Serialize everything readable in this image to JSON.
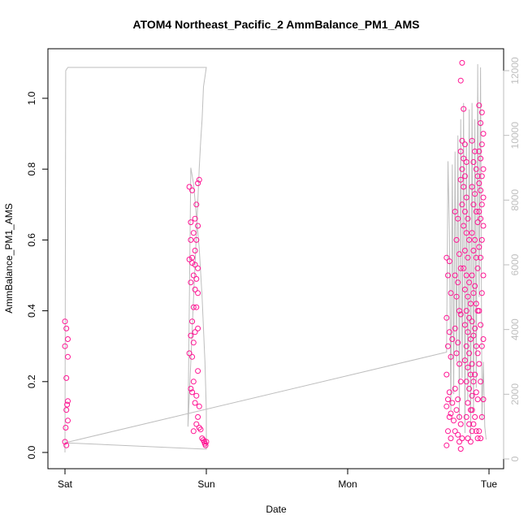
{
  "chart_data": {
    "type": "scatter",
    "title": "ATOM4 Northeast_Pacific_2 AmmBalance_PM1_AMS",
    "xlabel": "Date",
    "ylabel": "AmmBalance_PM1_AMS",
    "x_categories": [
      "Sat",
      "Sun",
      "Mon",
      "Tue"
    ],
    "x_range": [
      0,
      3
    ],
    "ylim": [
      0,
      1.1
    ],
    "y_ticks": [
      0.0,
      0.2,
      0.4,
      0.6,
      0.8,
      1.0
    ],
    "y_tick_labels": [
      "0.0",
      "0.2",
      "0.4",
      "0.6",
      "0.8",
      "1.0"
    ],
    "y2lim": [
      0,
      12500
    ],
    "y2_ticks": [
      0,
      2000,
      4000,
      6000,
      8000,
      10000,
      12000
    ],
    "y2_tick_labels": [
      "0",
      "2000",
      "4000",
      "6000",
      "8000",
      "10000",
      "12000"
    ],
    "grid": false,
    "colors": {
      "points": "#ff1493",
      "line": "#bebebe",
      "axis": "#000000"
    },
    "series": [
      {
        "kind": "points",
        "points": [
          [
            0.0,
            0.37
          ],
          [
            0.01,
            0.35
          ],
          [
            0.02,
            0.32
          ],
          [
            0.0,
            0.3
          ],
          [
            0.02,
            0.27
          ],
          [
            0.01,
            0.21
          ],
          [
            0.02,
            0.145
          ],
          [
            0.015,
            0.135
          ],
          [
            0.01,
            0.12
          ],
          [
            0.02,
            0.09
          ],
          [
            0.005,
            0.07
          ],
          [
            0.0,
            0.03
          ],
          [
            0.01,
            0.02
          ],
          [
            0.88,
            0.75
          ],
          [
            0.9,
            0.74
          ],
          [
            0.95,
            0.77
          ],
          [
            0.94,
            0.76
          ],
          [
            0.93,
            0.7
          ],
          [
            0.89,
            0.65
          ],
          [
            0.92,
            0.66
          ],
          [
            0.91,
            0.62
          ],
          [
            0.94,
            0.64
          ],
          [
            0.93,
            0.6
          ],
          [
            0.89,
            0.6
          ],
          [
            0.92,
            0.57
          ],
          [
            0.9,
            0.55
          ],
          [
            0.88,
            0.545
          ],
          [
            0.9,
            0.535
          ],
          [
            0.92,
            0.53
          ],
          [
            0.94,
            0.52
          ],
          [
            0.91,
            0.5
          ],
          [
            0.93,
            0.49
          ],
          [
            0.89,
            0.48
          ],
          [
            0.92,
            0.46
          ],
          [
            0.94,
            0.45
          ],
          [
            0.91,
            0.41
          ],
          [
            0.93,
            0.41
          ],
          [
            0.9,
            0.37
          ],
          [
            0.92,
            0.34
          ],
          [
            0.94,
            0.35
          ],
          [
            0.89,
            0.33
          ],
          [
            0.91,
            0.31
          ],
          [
            0.88,
            0.28
          ],
          [
            0.9,
            0.27
          ],
          [
            0.94,
            0.23
          ],
          [
            0.91,
            0.2
          ],
          [
            0.89,
            0.18
          ],
          [
            0.9,
            0.17
          ],
          [
            0.93,
            0.16
          ],
          [
            0.92,
            0.14
          ],
          [
            0.95,
            0.13
          ],
          [
            0.94,
            0.1
          ],
          [
            0.93,
            0.08
          ],
          [
            0.95,
            0.07
          ],
          [
            0.96,
            0.065
          ],
          [
            0.91,
            0.06
          ],
          [
            0.97,
            0.04
          ],
          [
            0.98,
            0.035
          ],
          [
            0.985,
            0.03
          ],
          [
            0.99,
            0.025
          ],
          [
            0.995,
            0.02
          ],
          [
            1.0,
            0.03
          ],
          [
            2.7,
            0.55
          ],
          [
            2.72,
            0.54
          ],
          [
            2.71,
            0.5
          ],
          [
            2.73,
            0.45
          ],
          [
            2.7,
            0.38
          ],
          [
            2.72,
            0.34
          ],
          [
            2.74,
            0.32
          ],
          [
            2.71,
            0.3
          ],
          [
            2.73,
            0.27
          ],
          [
            2.7,
            0.22
          ],
          [
            2.72,
            0.17
          ],
          [
            2.71,
            0.15
          ],
          [
            2.74,
            0.14
          ],
          [
            2.7,
            0.13
          ],
          [
            2.73,
            0.11
          ],
          [
            2.72,
            0.1
          ],
          [
            2.75,
            0.09
          ],
          [
            2.71,
            0.06
          ],
          [
            2.73,
            0.04
          ],
          [
            2.7,
            0.02
          ],
          [
            2.76,
            0.68
          ],
          [
            2.78,
            0.66
          ],
          [
            2.77,
            0.6
          ],
          [
            2.79,
            0.56
          ],
          [
            2.8,
            0.52
          ],
          [
            2.76,
            0.5
          ],
          [
            2.78,
            0.48
          ],
          [
            2.77,
            0.44
          ],
          [
            2.79,
            0.4
          ],
          [
            2.8,
            0.39
          ],
          [
            2.76,
            0.35
          ],
          [
            2.78,
            0.31
          ],
          [
            2.77,
            0.28
          ],
          [
            2.79,
            0.25
          ],
          [
            2.8,
            0.2
          ],
          [
            2.76,
            0.18
          ],
          [
            2.78,
            0.15
          ],
          [
            2.77,
            0.12
          ],
          [
            2.79,
            0.1
          ],
          [
            2.8,
            0.08
          ],
          [
            2.76,
            0.06
          ],
          [
            2.78,
            0.05
          ],
          [
            2.81,
            0.04
          ],
          [
            2.79,
            0.03
          ],
          [
            2.8,
            0.01
          ],
          [
            2.81,
            1.1
          ],
          [
            2.8,
            1.05
          ],
          [
            2.82,
            0.97
          ],
          [
            2.81,
            0.88
          ],
          [
            2.83,
            0.87
          ],
          [
            2.8,
            0.85
          ],
          [
            2.82,
            0.83
          ],
          [
            2.84,
            0.82
          ],
          [
            2.81,
            0.8
          ],
          [
            2.83,
            0.78
          ],
          [
            2.8,
            0.77
          ],
          [
            2.82,
            0.75
          ],
          [
            2.84,
            0.72
          ],
          [
            2.81,
            0.7
          ],
          [
            2.83,
            0.68
          ],
          [
            2.85,
            0.66
          ],
          [
            2.82,
            0.64
          ],
          [
            2.84,
            0.62
          ],
          [
            2.86,
            0.6
          ],
          [
            2.83,
            0.57
          ],
          [
            2.85,
            0.55
          ],
          [
            2.82,
            0.52
          ],
          [
            2.84,
            0.5
          ],
          [
            2.86,
            0.48
          ],
          [
            2.83,
            0.46
          ],
          [
            2.85,
            0.44
          ],
          [
            2.87,
            0.42
          ],
          [
            2.84,
            0.4
          ],
          [
            2.86,
            0.38
          ],
          [
            2.83,
            0.36
          ],
          [
            2.85,
            0.34
          ],
          [
            2.87,
            0.32
          ],
          [
            2.84,
            0.3
          ],
          [
            2.86,
            0.28
          ],
          [
            2.83,
            0.26
          ],
          [
            2.85,
            0.24
          ],
          [
            2.87,
            0.22
          ],
          [
            2.84,
            0.2
          ],
          [
            2.86,
            0.18
          ],
          [
            2.88,
            0.16
          ],
          [
            2.85,
            0.14
          ],
          [
            2.87,
            0.12
          ],
          [
            2.84,
            0.1
          ],
          [
            2.86,
            0.08
          ],
          [
            2.88,
            0.06
          ],
          [
            2.85,
            0.04
          ],
          [
            2.87,
            0.03
          ],
          [
            2.88,
            0.88
          ],
          [
            2.9,
            0.85
          ],
          [
            2.89,
            0.82
          ],
          [
            2.91,
            0.8
          ],
          [
            2.92,
            0.78
          ],
          [
            2.88,
            0.75
          ],
          [
            2.9,
            0.73
          ],
          [
            2.89,
            0.7
          ],
          [
            2.91,
            0.68
          ],
          [
            2.92,
            0.65
          ],
          [
            2.88,
            0.62
          ],
          [
            2.9,
            0.6
          ],
          [
            2.89,
            0.57
          ],
          [
            2.91,
            0.55
          ],
          [
            2.92,
            0.52
          ],
          [
            2.88,
            0.5
          ],
          [
            2.9,
            0.47
          ],
          [
            2.89,
            0.45
          ],
          [
            2.91,
            0.42
          ],
          [
            2.92,
            0.4
          ],
          [
            2.88,
            0.37
          ],
          [
            2.9,
            0.35
          ],
          [
            2.89,
            0.33
          ],
          [
            2.91,
            0.3
          ],
          [
            2.92,
            0.28
          ],
          [
            2.88,
            0.25
          ],
          [
            2.9,
            0.22
          ],
          [
            2.89,
            0.2
          ],
          [
            2.91,
            0.17
          ],
          [
            2.92,
            0.15
          ],
          [
            2.88,
            0.12
          ],
          [
            2.9,
            0.1
          ],
          [
            2.89,
            0.08
          ],
          [
            2.91,
            0.06
          ],
          [
            2.92,
            0.04
          ],
          [
            2.93,
            0.98
          ],
          [
            2.95,
            0.96
          ],
          [
            2.94,
            0.93
          ],
          [
            2.96,
            0.9
          ],
          [
            2.95,
            0.87
          ],
          [
            2.93,
            0.85
          ],
          [
            2.94,
            0.83
          ],
          [
            2.96,
            0.8
          ],
          [
            2.95,
            0.78
          ],
          [
            2.93,
            0.76
          ],
          [
            2.94,
            0.74
          ],
          [
            2.96,
            0.72
          ],
          [
            2.95,
            0.7
          ],
          [
            2.93,
            0.68
          ],
          [
            2.94,
            0.66
          ],
          [
            2.96,
            0.64
          ],
          [
            2.95,
            0.6
          ],
          [
            2.93,
            0.58
          ],
          [
            2.94,
            0.55
          ],
          [
            2.96,
            0.5
          ],
          [
            2.95,
            0.45
          ],
          [
            2.93,
            0.4
          ],
          [
            2.94,
            0.36
          ],
          [
            2.96,
            0.32
          ],
          [
            2.95,
            0.3
          ],
          [
            2.93,
            0.25
          ],
          [
            2.94,
            0.2
          ],
          [
            2.96,
            0.15
          ],
          [
            2.95,
            0.1
          ],
          [
            2.93,
            0.06
          ],
          [
            2.94,
            0.04
          ]
        ]
      },
      {
        "kind": "line",
        "axis": "right",
        "points": [
          [
            0.0,
            200
          ],
          [
            0.005,
            12000
          ],
          [
            0.02,
            12100
          ],
          [
            0.5,
            12100
          ],
          [
            1.0,
            12100
          ],
          [
            0.98,
            11500
          ],
          [
            0.97,
            10500
          ],
          [
            0.96,
            9800
          ],
          [
            0.95,
            9000
          ],
          [
            0.94,
            8000
          ],
          [
            0.93,
            7000
          ],
          [
            0.92,
            6000
          ],
          [
            0.91,
            5000
          ],
          [
            0.9,
            4000
          ],
          [
            0.89,
            3000
          ],
          [
            0.88,
            2000
          ],
          [
            0.87,
            1000
          ],
          [
            0.89,
            9000
          ],
          [
            0.91,
            8500
          ],
          [
            0.93,
            7500
          ],
          [
            0.95,
            6500
          ],
          [
            0.97,
            5000
          ],
          [
            0.99,
            3000
          ],
          [
            1.0,
            1500
          ],
          [
            1.0,
            300
          ],
          [
            0.0,
            500
          ],
          [
            2.7,
            3300
          ],
          [
            2.71,
            9200
          ],
          [
            2.72,
            7000
          ],
          [
            2.73,
            1500
          ],
          [
            2.74,
            9100
          ],
          [
            2.75,
            2000
          ],
          [
            2.76,
            9500
          ],
          [
            2.77,
            3000
          ],
          [
            2.78,
            10000
          ],
          [
            2.79,
            1200
          ],
          [
            2.8,
            10500
          ],
          [
            2.81,
            2500
          ],
          [
            2.82,
            11000
          ],
          [
            2.83,
            800
          ],
          [
            2.84,
            9800
          ],
          [
            2.85,
            1800
          ],
          [
            2.86,
            10800
          ],
          [
            2.87,
            600
          ],
          [
            2.88,
            11000
          ],
          [
            2.89,
            1400
          ],
          [
            2.9,
            10500
          ],
          [
            2.91,
            2200
          ],
          [
            2.92,
            12200
          ],
          [
            2.93,
            5000
          ],
          [
            2.94,
            12100
          ],
          [
            2.95,
            1200
          ],
          [
            2.96,
            3000
          ],
          [
            2.97,
            1000
          ],
          [
            2.98,
            600
          ]
        ]
      }
    ]
  }
}
